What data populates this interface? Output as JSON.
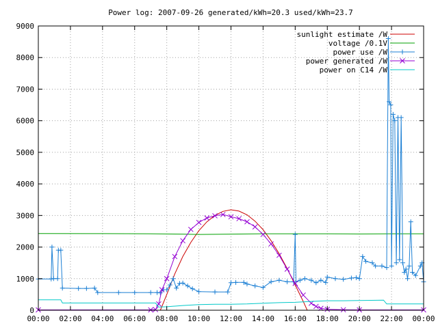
{
  "chart_data": {
    "type": "line",
    "title": "Power log: 2007-09-26 generated/kWh=20.3 used/kWh=23.7",
    "xlabel": "",
    "ylabel": "",
    "xlim": [
      0,
      24
    ],
    "ylim": [
      0,
      9000
    ],
    "grid": true,
    "legend_position": "top-right",
    "x_tick_labels": [
      "00:00",
      "02:00",
      "04:00",
      "06:00",
      "08:00",
      "10:00",
      "12:00",
      "14:00",
      "16:00",
      "18:00",
      "20:00",
      "22:00",
      "00:00"
    ],
    "y_ticks": [
      0,
      1000,
      2000,
      3000,
      4000,
      5000,
      6000,
      7000,
      8000,
      9000
    ],
    "series": [
      {
        "name": "sunlight estimate /W",
        "color": "#cc0000",
        "marker": "none",
        "points": [
          [
            7.6,
            0
          ],
          [
            8,
            500
          ],
          [
            8.5,
            1150
          ],
          [
            9,
            1700
          ],
          [
            9.5,
            2150
          ],
          [
            10,
            2520
          ],
          [
            10.5,
            2800
          ],
          [
            11,
            3000
          ],
          [
            11.5,
            3130
          ],
          [
            12,
            3180
          ],
          [
            12.5,
            3140
          ],
          [
            13,
            3020
          ],
          [
            13.5,
            2820
          ],
          [
            14,
            2550
          ],
          [
            14.5,
            2200
          ],
          [
            15,
            1790
          ],
          [
            15.5,
            1320
          ],
          [
            16,
            800
          ],
          [
            16.5,
            280
          ],
          [
            16.75,
            0
          ]
        ]
      },
      {
        "name": "voltage /0.1V",
        "color": "#00a000",
        "marker": "none",
        "points": [
          [
            0,
            2430
          ],
          [
            4,
            2425
          ],
          [
            7,
            2420
          ],
          [
            9,
            2410
          ],
          [
            10,
            2400
          ],
          [
            12,
            2410
          ],
          [
            14,
            2420
          ],
          [
            16,
            2420
          ],
          [
            18,
            2420
          ],
          [
            20,
            2415
          ],
          [
            22,
            2420
          ],
          [
            24,
            2420
          ]
        ]
      },
      {
        "name": "power use /W",
        "color": "#1b7fd4",
        "marker": "plus",
        "points": [
          [
            0,
            990
          ],
          [
            0.8,
            990
          ],
          [
            0.85,
            2000
          ],
          [
            0.95,
            1000
          ],
          [
            1.2,
            1000
          ],
          [
            1.25,
            1900
          ],
          [
            1.4,
            1900
          ],
          [
            1.5,
            700
          ],
          [
            2.5,
            690
          ],
          [
            3,
            690
          ],
          [
            3.5,
            700
          ],
          [
            3.7,
            560
          ],
          [
            5,
            560
          ],
          [
            6,
            560
          ],
          [
            7,
            560
          ],
          [
            7.4,
            560
          ],
          [
            7.6,
            550
          ],
          [
            7.8,
            650
          ],
          [
            8,
            650
          ],
          [
            8.2,
            800
          ],
          [
            8.4,
            1000
          ],
          [
            8.6,
            700
          ],
          [
            8.8,
            850
          ],
          [
            9,
            860
          ],
          [
            9.3,
            770
          ],
          [
            9.6,
            680
          ],
          [
            10,
            590
          ],
          [
            11,
            580
          ],
          [
            11.8,
            580
          ],
          [
            12,
            870
          ],
          [
            12.3,
            880
          ],
          [
            12.8,
            880
          ],
          [
            13,
            830
          ],
          [
            13.5,
            770
          ],
          [
            14,
            720
          ],
          [
            14.5,
            900
          ],
          [
            15,
            950
          ],
          [
            15.5,
            900
          ],
          [
            15.9,
            900
          ],
          [
            16,
            2400
          ],
          [
            16.05,
            900
          ],
          [
            16.3,
            950
          ],
          [
            16.6,
            1000
          ],
          [
            17,
            950
          ],
          [
            17.3,
            870
          ],
          [
            17.6,
            950
          ],
          [
            17.9,
            880
          ],
          [
            18,
            1050
          ],
          [
            18.5,
            1000
          ],
          [
            19,
            980
          ],
          [
            19.5,
            1020
          ],
          [
            19.8,
            1030
          ],
          [
            20,
            1000
          ],
          [
            20.2,
            1700
          ],
          [
            20.4,
            1550
          ],
          [
            20.8,
            1500
          ],
          [
            21,
            1400
          ],
          [
            21.4,
            1400
          ],
          [
            21.7,
            1350
          ],
          [
            21.8,
            8600
          ],
          [
            21.85,
            6600
          ],
          [
            21.95,
            6500
          ],
          [
            22,
            1400
          ],
          [
            22.1,
            6200
          ],
          [
            22.2,
            6000
          ],
          [
            22.3,
            1500
          ],
          [
            22.4,
            6100
          ],
          [
            22.5,
            1600
          ],
          [
            22.6,
            6100
          ],
          [
            22.7,
            1500
          ],
          [
            22.8,
            1200
          ],
          [
            22.9,
            1300
          ],
          [
            23,
            1000
          ],
          [
            23.1,
            1400
          ],
          [
            23.2,
            2800
          ],
          [
            23.3,
            1200
          ],
          [
            23.5,
            1100
          ],
          [
            23.8,
            1400
          ],
          [
            23.9,
            1500
          ],
          [
            24,
            900
          ]
        ]
      },
      {
        "name": "power generated /W",
        "color": "#9400d3",
        "marker": "x",
        "points": [
          [
            0,
            10
          ],
          [
            7,
            10
          ],
          [
            7.3,
            20
          ],
          [
            7.5,
            200
          ],
          [
            7.7,
            650
          ],
          [
            8,
            1000
          ],
          [
            8.5,
            1700
          ],
          [
            9,
            2200
          ],
          [
            9.5,
            2560
          ],
          [
            10,
            2780
          ],
          [
            10.5,
            2920
          ],
          [
            11,
            2990
          ],
          [
            11.5,
            3030
          ],
          [
            12,
            2960
          ],
          [
            12.5,
            2900
          ],
          [
            13,
            2800
          ],
          [
            13.5,
            2640
          ],
          [
            14,
            2400
          ],
          [
            14.5,
            2100
          ],
          [
            15,
            1740
          ],
          [
            15.5,
            1300
          ],
          [
            16,
            850
          ],
          [
            16.5,
            480
          ],
          [
            17,
            220
          ],
          [
            17.3,
            120
          ],
          [
            17.6,
            60
          ],
          [
            18,
            30
          ],
          [
            19,
            15
          ],
          [
            20,
            10
          ],
          [
            24,
            10
          ]
        ]
      },
      {
        "name": "power on C14 /W",
        "color": "#00c8c8",
        "marker": "none",
        "points": [
          [
            0,
            330
          ],
          [
            1.4,
            330
          ],
          [
            1.5,
            230
          ],
          [
            6,
            230
          ],
          [
            7.3,
            230
          ],
          [
            7.5,
            100
          ],
          [
            8,
            110
          ],
          [
            9,
            150
          ],
          [
            10,
            180
          ],
          [
            11,
            190
          ],
          [
            12,
            190
          ],
          [
            13,
            200
          ],
          [
            14,
            220
          ],
          [
            15,
            240
          ],
          [
            16,
            250
          ],
          [
            17,
            280
          ],
          [
            18,
            300
          ],
          [
            19,
            300
          ],
          [
            20,
            310
          ],
          [
            21.5,
            320
          ],
          [
            21.7,
            200
          ],
          [
            24,
            200
          ]
        ]
      }
    ]
  }
}
